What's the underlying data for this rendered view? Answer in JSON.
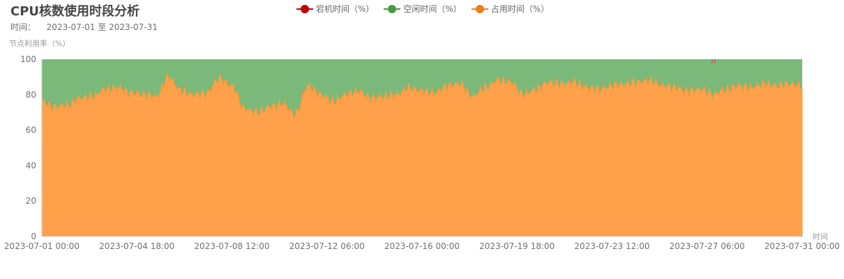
{
  "title": "CPU核数使用时段分析",
  "subtitle": {
    "label": "时间：",
    "start": "2023-07-01",
    "connector": "至",
    "end": "2023-07-31"
  },
  "legend": [
    {
      "name": "宕机时间（%）",
      "color": "#c00000",
      "icon": "circle-line-marker"
    },
    {
      "name": "空闲时间（%）",
      "color": "#4a9a3f",
      "icon": "circle-line-marker"
    },
    {
      "name": "占用时间（%）",
      "color": "#f07d1a",
      "icon": "circle-line-marker"
    }
  ],
  "chart_data": {
    "type": "area",
    "stacked": true,
    "ylabel": "节点利用率（%）",
    "xlabel": "时间",
    "ylim": [
      0,
      100
    ],
    "yticks": [
      0,
      20,
      40,
      60,
      80,
      100
    ],
    "xlim": [
      "2023-07-01 00:00",
      "2023-07-31 00:00"
    ],
    "xticks": [
      "2023-07-01 00:00",
      "2023-07-04 18:00",
      "2023-07-08 12:00",
      "2023-07-12 06:00",
      "2023-07-16 00:00",
      "2023-07-19 18:00",
      "2023-07-23 12:00",
      "2023-07-27 06:00",
      "2023-07-31 00:00"
    ],
    "colors": {
      "occupied": "#ffa04a",
      "idle": "#7ab97a",
      "down": "#e03030"
    },
    "series": [
      {
        "name": "占用时间（%）",
        "x": [
          "2023-07-01 00:00",
          "2023-07-01 12:00",
          "2023-07-02 00:00",
          "2023-07-02 12:00",
          "2023-07-03 00:00",
          "2023-07-03 12:00",
          "2023-07-04 00:00",
          "2023-07-04 12:00",
          "2023-07-05 00:00",
          "2023-07-05 12:00",
          "2023-07-06 00:00",
          "2023-07-06 12:00",
          "2023-07-07 00:00",
          "2023-07-07 12:00",
          "2023-07-08 00:00",
          "2023-07-08 12:00",
          "2023-07-09 00:00",
          "2023-07-09 12:00",
          "2023-07-10 00:00",
          "2023-07-10 12:00",
          "2023-07-11 00:00",
          "2023-07-11 12:00",
          "2023-07-12 00:00",
          "2023-07-12 12:00",
          "2023-07-13 00:00",
          "2023-07-13 12:00",
          "2023-07-14 00:00",
          "2023-07-14 12:00",
          "2023-07-15 00:00",
          "2023-07-15 12:00",
          "2023-07-16 00:00",
          "2023-07-16 12:00",
          "2023-07-17 00:00",
          "2023-07-17 12:00",
          "2023-07-18 00:00",
          "2023-07-18 12:00",
          "2023-07-19 00:00",
          "2023-07-19 12:00",
          "2023-07-20 00:00",
          "2023-07-20 12:00",
          "2023-07-21 00:00",
          "2023-07-21 12:00",
          "2023-07-22 00:00",
          "2023-07-22 12:00",
          "2023-07-23 00:00",
          "2023-07-23 12:00",
          "2023-07-24 00:00",
          "2023-07-24 12:00",
          "2023-07-25 00:00",
          "2023-07-25 12:00",
          "2023-07-26 00:00",
          "2023-07-26 12:00",
          "2023-07-27 00:00",
          "2023-07-27 12:00",
          "2023-07-28 00:00",
          "2023-07-28 12:00",
          "2023-07-29 00:00",
          "2023-07-29 12:00",
          "2023-07-30 00:00",
          "2023-07-30 12:00",
          "2023-07-31 00:00"
        ],
        "values": [
          76,
          73,
          74,
          78,
          79,
          83,
          84,
          81,
          80,
          79,
          90,
          82,
          80,
          81,
          89,
          85,
          72,
          70,
          73,
          75,
          69,
          85,
          80,
          76,
          80,
          82,
          78,
          79,
          80,
          84,
          82,
          81,
          85,
          86,
          79,
          84,
          88,
          87,
          80,
          83,
          87,
          86,
          87,
          84,
          83,
          85,
          86,
          87,
          88,
          85,
          84,
          82,
          83,
          80,
          83,
          85,
          84,
          86,
          85,
          86,
          85
        ]
      },
      {
        "name": "空闲时间（%）",
        "values_note_free": [
          24,
          27,
          26,
          22,
          21,
          17,
          16,
          19,
          20,
          21,
          10,
          18,
          20,
          19,
          11,
          15,
          28,
          30,
          27,
          25,
          31,
          15,
          20,
          24,
          20,
          18,
          22,
          21,
          20,
          16,
          18,
          19,
          15,
          14,
          21,
          16,
          12,
          13,
          20,
          17,
          13,
          14,
          13,
          16,
          17,
          15,
          14,
          13,
          12,
          15,
          16,
          18,
          17,
          20,
          17,
          15,
          16,
          14,
          15,
          14,
          15
        ]
      },
      {
        "name": "宕机时间（%）",
        "points": [
          {
            "x": "2023-07-27 12:00",
            "value": 1
          }
        ]
      }
    ]
  }
}
